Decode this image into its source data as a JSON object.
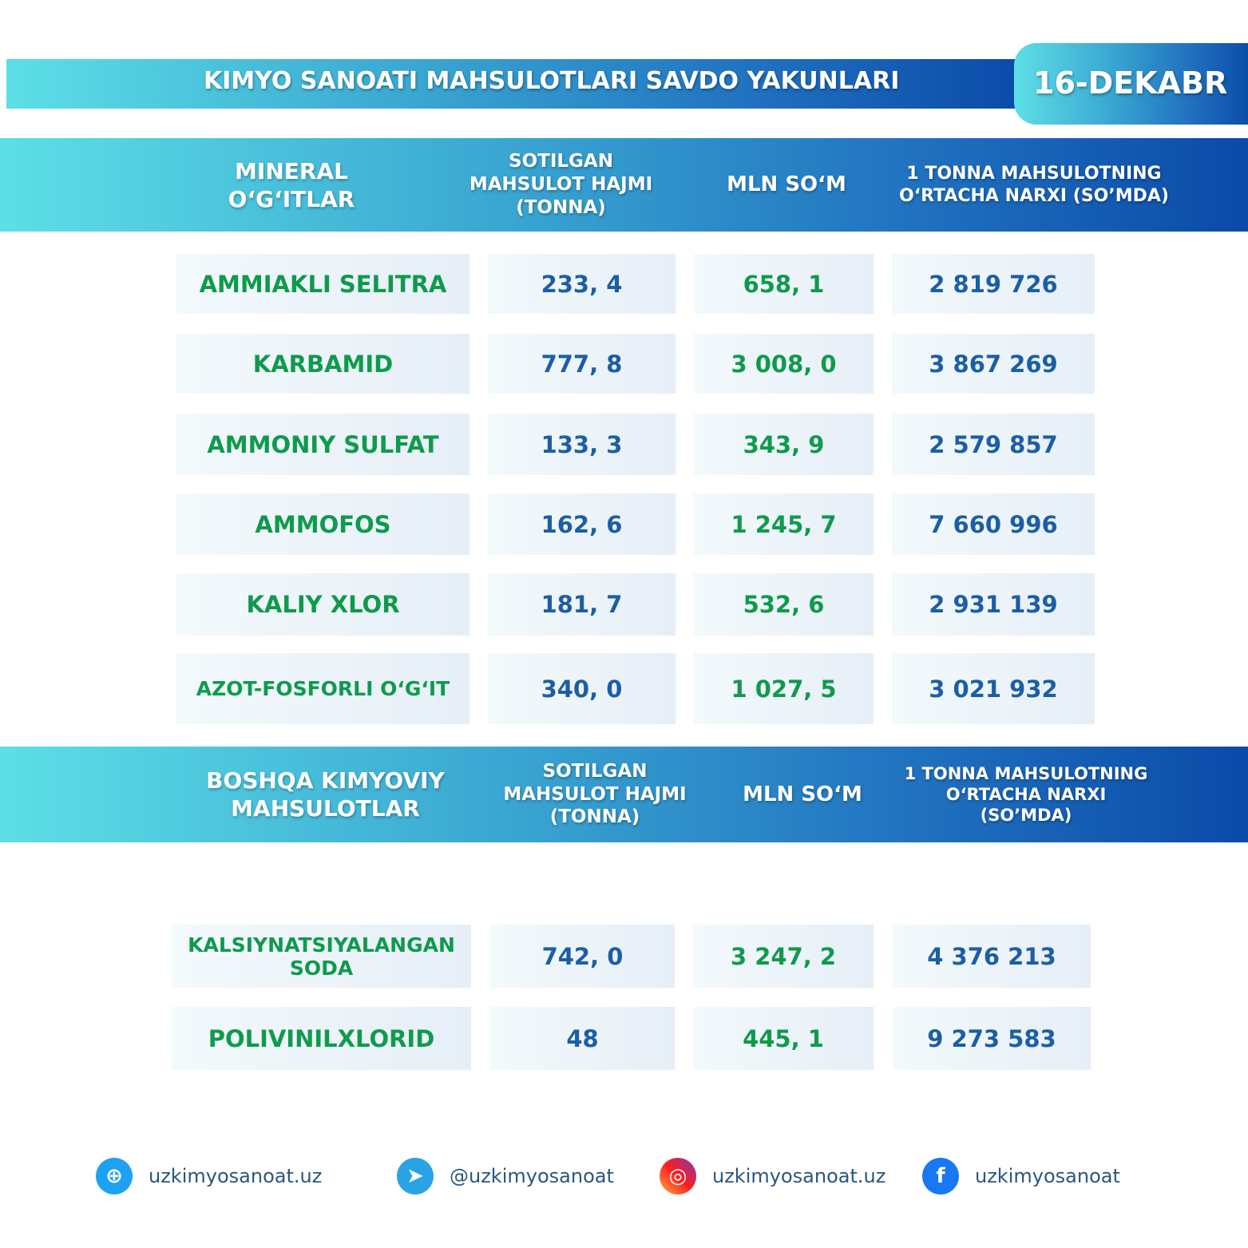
{
  "header": {
    "title": "KIMYO SANOATI MAHSULOTLARI SAVDO YAKUNLARI",
    "date": "16-DEKABR"
  },
  "mineral": {
    "headers": [
      "MINERAL O‘G‘ITLAR",
      "SOTILGAN MAHSULOT HAJMI (TONNA)",
      "MLN SO‘M",
      "1 TONNA MAHSULOTNING O‘RTACHA NARXI (SO’MDA)"
    ],
    "rows": [
      [
        "AMMIAKLI SELITRA",
        "233, 4",
        "658, 1",
        "2 819 726"
      ],
      [
        "KARBAMID",
        "777, 8",
        "3 008, 0",
        "3 867 269"
      ],
      [
        "AMMONIY SULFAT",
        "133, 3",
        "343, 9",
        "2 579 857"
      ],
      [
        "AMMOFOS",
        "162, 6",
        "1 245, 7",
        "7 660 996"
      ],
      [
        "KALIY XLOR",
        "181, 7",
        "532, 6",
        "2 931 139"
      ],
      [
        "AZOT-FOSFORLI O‘G‘IT",
        "340, 0",
        "1 027, 5",
        "3 021 932"
      ]
    ]
  },
  "other": {
    "headers": [
      "BOSHQA KIMYOVIY MAHSULOTLAR",
      "SOTILGAN MAHSULOT HAJMI (TONNA)",
      "MLN SO‘M",
      "1 TONNA MAHSULOTNING O‘RTACHA NARXI (SO’MDA)"
    ],
    "rows": [
      [
        "KALSIYNATSIYALANGAN SODA",
        "742, 0",
        "3 247, 2",
        "4 376 213"
      ],
      [
        "POLIVINILXLORID",
        "48",
        "445, 1",
        "9 273 583"
      ]
    ]
  },
  "footer": [
    {
      "icon": "globe-icon",
      "text": "uzkimyosanoat.uz",
      "color": "#1da1f2"
    },
    {
      "icon": "telegram-icon",
      "text": "@uzkimyosanoat",
      "color": "#29a3e6"
    },
    {
      "icon": "instagram-icon",
      "text": "uzkimyosanoat.uz",
      "color": "#e1306c"
    },
    {
      "icon": "facebook-icon",
      "text": "uzkimyosanoat",
      "color": "#1877f2"
    }
  ]
}
